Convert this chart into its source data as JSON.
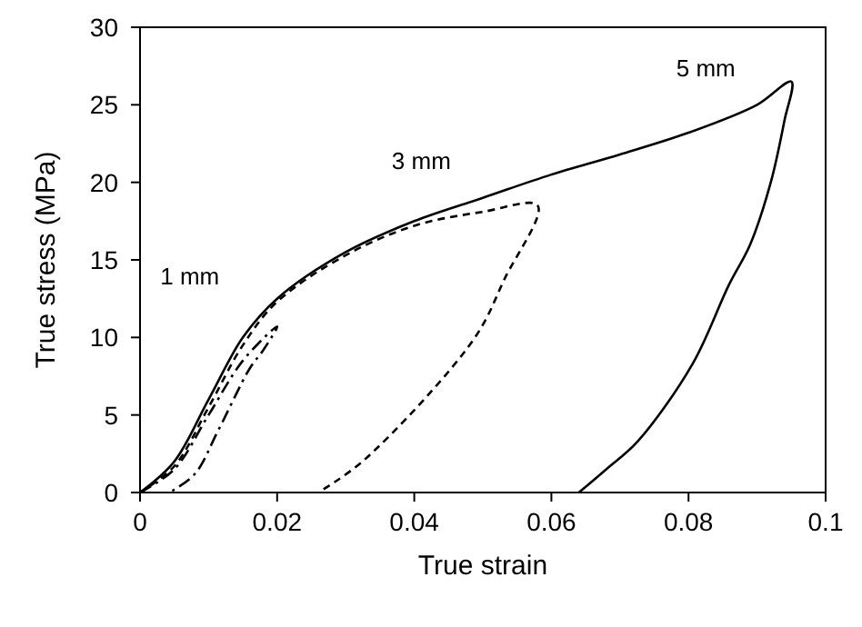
{
  "chart_data": {
    "type": "line",
    "xlabel": "True strain",
    "ylabel": "True stress (MPa)",
    "xlim": [
      0,
      0.1
    ],
    "ylim": [
      0,
      30
    ],
    "xticks": [
      0,
      0.02,
      0.04,
      0.06,
      0.08,
      0.1
    ],
    "yticks": [
      0,
      5,
      10,
      15,
      20,
      25,
      30
    ],
    "grid": false,
    "marker": "none",
    "series": [
      {
        "name": "5 mm",
        "color": "#000000",
        "line_style": "solid",
        "x": [
          0,
          0.005,
          0.01,
          0.015,
          0.02,
          0.03,
          0.04,
          0.05,
          0.06,
          0.07,
          0.08,
          0.09,
          0.095,
          0.094,
          0.092,
          0.089,
          0.0859,
          0.0806,
          0.0726,
          0.068,
          0.064
        ],
        "values": [
          0,
          2,
          6,
          10,
          12.5,
          15.5,
          17.5,
          19,
          20.5,
          21.8,
          23.2,
          25,
          26.5,
          24,
          20,
          16,
          13.4,
          8.3,
          3.3,
          1.5,
          0
        ]
      },
      {
        "name": "3 mm",
        "color": "#000000",
        "line_style": "dashed",
        "x": [
          0,
          0.005,
          0.01,
          0.015,
          0.02,
          0.03,
          0.04,
          0.05,
          0.058,
          0.0532,
          0.0487,
          0.0327,
          0.026
        ],
        "values": [
          0,
          1.7,
          5.5,
          9.5,
          12.3,
          15.3,
          17.2,
          18.1,
          18.5,
          13.8,
          9.9,
          2.1,
          0
        ]
      },
      {
        "name": "1 mm",
        "color": "#000000",
        "line_style": "dashdot",
        "x": [
          0,
          0.005,
          0.01,
          0.015,
          0.02,
          0.018,
          0.016,
          0.0114,
          0.008,
          0.0043
        ],
        "values": [
          0,
          1.5,
          5,
          8.5,
          10.7,
          9.2,
          8,
          4,
          1.2,
          0
        ]
      }
    ]
  }
}
